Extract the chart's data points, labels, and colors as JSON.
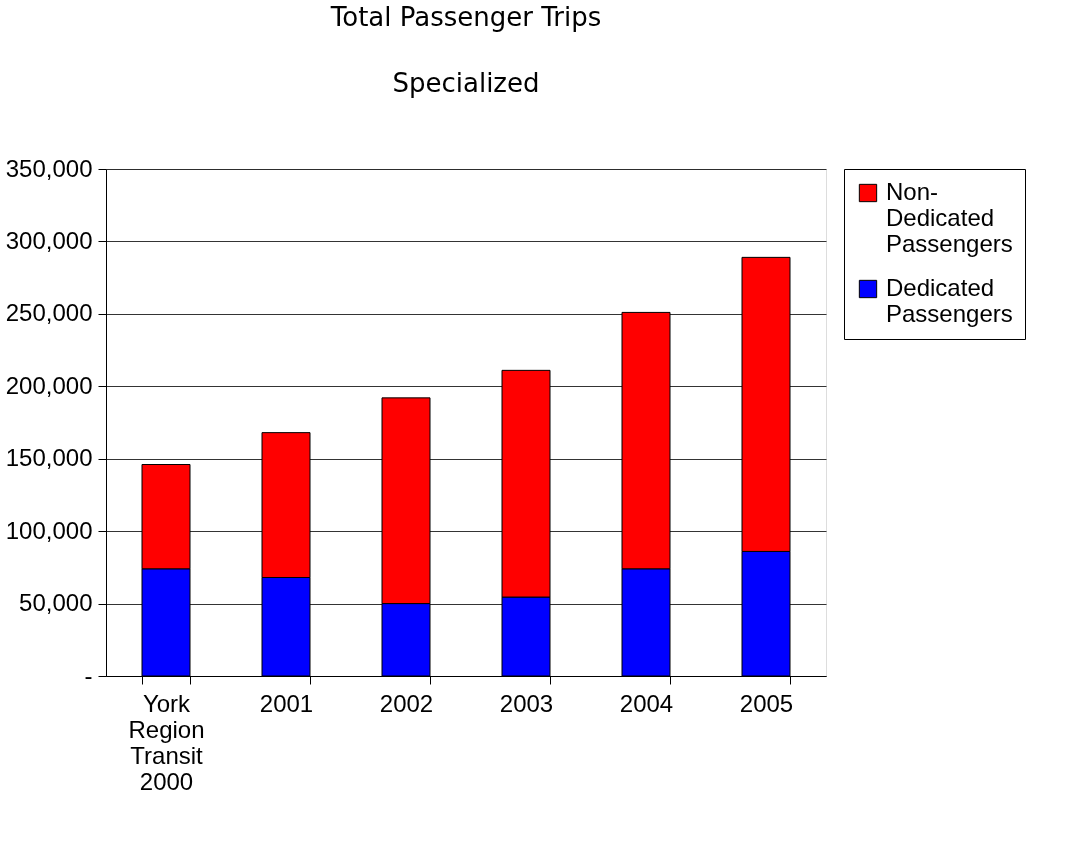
{
  "chart_data": {
    "type": "bar",
    "title": "Total Passenger Trips",
    "subtitle": "Specialized",
    "categories": [
      "York Region Transit 2000",
      "2001",
      "2002",
      "2003",
      "2004",
      "2005"
    ],
    "stacked": true,
    "series": [
      {
        "name": "Dedicated Passengers",
        "color": "#0000ff",
        "values": [
          74000,
          68000,
          50000,
          54500,
          74000,
          86000
        ]
      },
      {
        "name": "Non-Dedicated Passengers",
        "color": "#ff0000",
        "values": [
          72000,
          100000,
          142000,
          156500,
          177000,
          203000
        ]
      }
    ],
    "ylim": [
      0,
      350000
    ],
    "yticks": [
      {
        "value": 0,
        "label": "-"
      },
      {
        "value": 50000,
        "label": "50,000"
      },
      {
        "value": 100000,
        "label": "100,000"
      },
      {
        "value": 150000,
        "label": "150,000"
      },
      {
        "value": 200000,
        "label": "200,000"
      },
      {
        "value": 250000,
        "label": "250,000"
      },
      {
        "value": 300000,
        "label": "300,000"
      },
      {
        "value": 350000,
        "label": "350,000"
      }
    ],
    "grid": "y",
    "legend": "right"
  }
}
